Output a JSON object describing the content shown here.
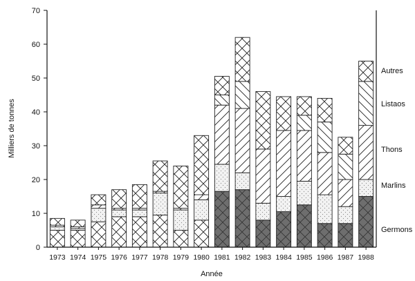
{
  "chart_data": {
    "type": "bar",
    "stacked": true,
    "xlabel": "Année",
    "ylabel": "Milliers de tonnes",
    "ylim": [
      0,
      70
    ],
    "yticks": [
      0,
      10,
      20,
      30,
      40,
      50,
      60,
      70
    ],
    "categories": [
      "1973",
      "1974",
      "1975",
      "1976",
      "1977",
      "1978",
      "1979",
      "1980",
      "1981",
      "1982",
      "1983",
      "1984",
      "1985",
      "1986",
      "1987",
      "1988"
    ],
    "legend_placement": "right, labels at segment levels of the 1988 bar",
    "series": [
      {
        "name": "Germons",
        "pattern": "crosshatch",
        "values": [
          5,
          5,
          7.5,
          9,
          9,
          9.5,
          5,
          8,
          16.5,
          17,
          8,
          10.5,
          12.5,
          7,
          7,
          15
        ]
      },
      {
        "name": "Marlins",
        "pattern": "stipple",
        "values": [
          1,
          0.5,
          4,
          2,
          2,
          6.5,
          6,
          6,
          8,
          5,
          5,
          4.5,
          7,
          8.5,
          5,
          5
        ]
      },
      {
        "name": "Thons",
        "pattern": "diagonal",
        "values": [
          0.5,
          0.5,
          1,
          0.5,
          0.5,
          0.5,
          0.5,
          1.5,
          17.5,
          19,
          16,
          19.5,
          15,
          12.5,
          8,
          16
        ]
      },
      {
        "name": "Listaos",
        "pattern": "antidiagonal",
        "values": [
          0,
          0,
          0,
          0,
          0,
          0,
          0,
          0,
          3,
          8,
          0,
          0,
          4.5,
          9,
          7.5,
          13
        ]
      },
      {
        "name": "Autres",
        "pattern": "crosshatch",
        "values": [
          2,
          2,
          3,
          5.5,
          7,
          9,
          12.5,
          17.5,
          5.5,
          13,
          17,
          10,
          5.5,
          7,
          5,
          6
        ]
      }
    ],
    "legend_labels": [
      "Autres",
      "Listaos",
      "Thons",
      "Marlins",
      "Germons"
    ],
    "grid": false,
    "title": "",
    "subtitle": ""
  }
}
